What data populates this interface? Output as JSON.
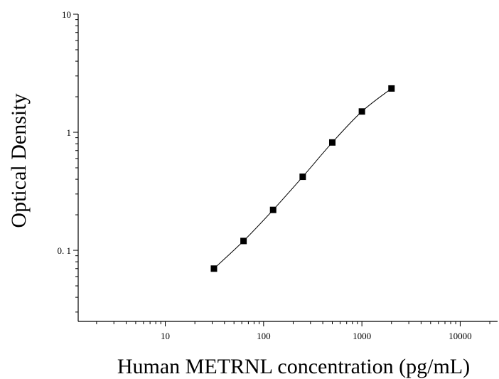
{
  "chart_data": {
    "type": "scatter",
    "title": "",
    "xlabel": "Human METRNL concentration (pg/mL)",
    "ylabel": "Optical Density",
    "xscale": "log",
    "yscale": "log",
    "xlim": [
      1.3,
      24000
    ],
    "ylim": [
      0.025,
      10
    ],
    "x_ticks": [
      {
        "value": 10,
        "label": "10"
      },
      {
        "value": 100,
        "label": "100"
      },
      {
        "value": 1000,
        "label": "1000"
      },
      {
        "value": 10000,
        "label": "10000"
      }
    ],
    "y_ticks": [
      {
        "value": 0.1,
        "label": "0. 1"
      },
      {
        "value": 1,
        "label": "1"
      },
      {
        "value": 10,
        "label": "10"
      }
    ],
    "grid": false,
    "legend": "none",
    "series": [
      {
        "marker": "square",
        "color": "#000000",
        "x": [
          31.25,
          62.5,
          125,
          250,
          500,
          1000,
          2000
        ],
        "y": [
          0.07,
          0.12,
          0.22,
          0.42,
          0.82,
          1.5,
          2.35
        ]
      }
    ],
    "fit_curve": {
      "type": "line",
      "color": "#000000"
    }
  }
}
